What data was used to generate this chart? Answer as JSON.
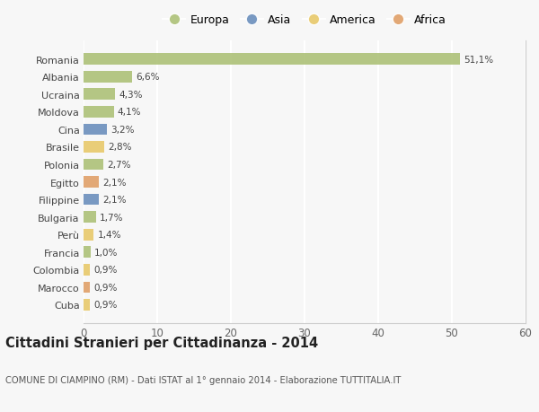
{
  "countries": [
    "Romania",
    "Albania",
    "Ucraina",
    "Moldova",
    "Cina",
    "Brasile",
    "Polonia",
    "Egitto",
    "Filippine",
    "Bulgaria",
    "Perù",
    "Francia",
    "Colombia",
    "Marocco",
    "Cuba"
  ],
  "values": [
    51.1,
    6.6,
    4.3,
    4.1,
    3.2,
    2.8,
    2.7,
    2.1,
    2.1,
    1.7,
    1.4,
    1.0,
    0.9,
    0.9,
    0.9
  ],
  "labels": [
    "51,1%",
    "6,6%",
    "4,3%",
    "4,1%",
    "3,2%",
    "2,8%",
    "2,7%",
    "2,1%",
    "2,1%",
    "1,7%",
    "1,4%",
    "1,0%",
    "0,9%",
    "0,9%",
    "0,9%"
  ],
  "continents": [
    "Europa",
    "Europa",
    "Europa",
    "Europa",
    "Asia",
    "America",
    "Europa",
    "Africa",
    "Asia",
    "Europa",
    "America",
    "Europa",
    "America",
    "Africa",
    "America"
  ],
  "colors": {
    "Europa": "#adc178",
    "Asia": "#6b8fbd",
    "America": "#e8c96a",
    "Africa": "#e0a068"
  },
  "background_color": "#f7f7f7",
  "grid_color": "#ffffff",
  "title": "Cittadini Stranieri per Cittadinanza - 2014",
  "subtitle": "COMUNE DI CIAMPINO (RM) - Dati ISTAT al 1° gennaio 2014 - Elaborazione TUTTITALIA.IT",
  "xlim": [
    0,
    60
  ],
  "xticks": [
    0,
    10,
    20,
    30,
    40,
    50,
    60
  ],
  "legend_order": [
    "Europa",
    "Asia",
    "America",
    "Africa"
  ]
}
